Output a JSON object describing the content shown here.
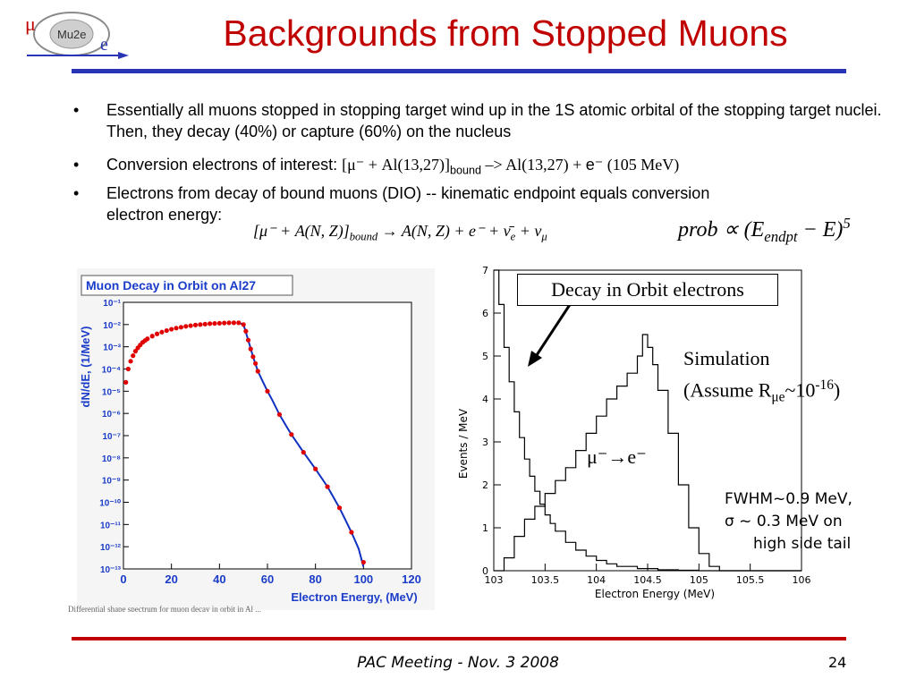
{
  "logo": {
    "text_mu": "μ",
    "text_name": "Mu2e",
    "text_e": "e"
  },
  "title": "Backgrounds from Stopped Muons",
  "bullets": {
    "b1": "Essentially all muons stopped in stopping target wind up in the 1S atomic orbital of the stopping target nuclei. Then, they decay (40%) or capture (60%) on the nucleus",
    "b2_prefix": "Conversion electrons of interest:",
    "b2_reaction_a": "[μ⁻ + Al(13,27)]",
    "b2_sub": "bound",
    "b2_arrow": " –> Al(13,27) + ",
    "b2_e": "e⁻",
    "b2_energy": " (105 MeV)",
    "b3_line1": "Electrons from decay of bound muons (DIO) -- kinematic endpoint equals conversion",
    "b3_line2": "electron energy:"
  },
  "equations": {
    "eq1_a": "[μ⁻ + A(N, Z)]",
    "eq1_sub": "bound",
    "eq1_b": " → A(N, Z) + e⁻ + ν̄",
    "eq1_sub_e": "e",
    "eq1_c": " + ν",
    "eq1_sub_mu": "μ",
    "eq2_a": "prob ∝ (E",
    "eq2_sub": "endpt",
    "eq2_b": " − E)",
    "eq2_sup": "5"
  },
  "annotations": {
    "dio": "Decay in Orbit electrons",
    "sim_line1": "Simulation",
    "sim_line2_a": "(Assume R",
    "sim_line2_sub": "μe",
    "sim_line2_b": "~10",
    "sim_line2_sup": "-16",
    "sim_line2_c": ")",
    "mue": "μ⁻→e⁻",
    "fwhm_line1": "FWHM~0.9 MeV,",
    "fwhm_line2": "σ ~ 0.3 MeV on",
    "fwhm_line3": "high side tail"
  },
  "caption_fragment": "Differential shape spectrum for muon decay in orbit in Al ...",
  "footer": {
    "text": "PAC Meeting - Nov. 3 2008",
    "page": "24"
  },
  "colors": {
    "title": "#c00000",
    "top_rule": "#2a35b5",
    "bottom_rule": "#c00000",
    "dio_points": "#e00000",
    "dio_curve": "#1030c0",
    "left_chart_title": "#1a3cc8"
  },
  "chart_data": [
    {
      "type": "scatter",
      "title": "Muon Decay in Orbit on Al27",
      "xlabel": "Electron Energy, (MeV)",
      "ylabel": "dN/dE, (1/MeV)",
      "xlim": [
        0,
        120
      ],
      "ylim_log10": [
        -13,
        -1
      ],
      "yscale": "log",
      "xticks": [
        "0",
        "20",
        "40",
        "60",
        "80",
        "100",
        "120"
      ],
      "yticks": [
        "10⁻¹",
        "10⁻²",
        "10⁻³",
        "10⁻⁴",
        "10⁻⁵",
        "10⁻⁶",
        "10⁻⁷",
        "10⁻⁸",
        "10⁻⁹",
        "10⁻¹⁰",
        "10⁻¹¹",
        "10⁻¹²",
        "10⁻¹³"
      ],
      "series": [
        {
          "x": [
            1,
            2,
            3,
            4,
            5,
            6,
            7,
            8,
            9,
            10,
            12,
            14,
            16,
            18,
            20,
            22,
            24,
            26,
            28,
            30,
            32,
            34,
            36,
            38,
            40,
            42,
            44,
            46,
            48,
            50,
            51,
            52,
            53,
            54,
            55,
            56,
            60,
            65,
            70,
            75,
            80,
            85,
            90,
            95,
            100
          ],
          "log10y": [
            -4.6,
            -4.0,
            -3.65,
            -3.4,
            -3.2,
            -3.05,
            -2.92,
            -2.8,
            -2.72,
            -2.64,
            -2.52,
            -2.42,
            -2.34,
            -2.27,
            -2.21,
            -2.16,
            -2.12,
            -2.08,
            -2.05,
            -2.02,
            -2.0,
            -1.98,
            -1.96,
            -1.95,
            -1.94,
            -1.93,
            -1.92,
            -1.92,
            -1.92,
            -2.0,
            -2.3,
            -2.7,
            -3.1,
            -3.45,
            -3.75,
            -4.1,
            -5.0,
            -6.05,
            -6.95,
            -7.75,
            -8.5,
            -9.3,
            -10.25,
            -11.35,
            -12.7
          ]
        }
      ],
      "curve": {
        "x": [
          48,
          50,
          52,
          54,
          56,
          58,
          60,
          62,
          65,
          68,
          70,
          75,
          80,
          85,
          90,
          95,
          98,
          100
        ],
        "log10y": [
          -1.92,
          -2.0,
          -2.7,
          -3.45,
          -4.1,
          -4.55,
          -5.0,
          -5.4,
          -6.05,
          -6.6,
          -6.95,
          -7.75,
          -8.5,
          -9.3,
          -10.25,
          -11.35,
          -12.1,
          -12.9
        ]
      }
    },
    {
      "type": "line",
      "title": "",
      "xlabel": "Electron Energy (MeV)",
      "ylabel": "Events / MeV",
      "xlim": [
        103,
        106
      ],
      "ylim": [
        0,
        7
      ],
      "xticks": [
        "103",
        "103.5",
        "104",
        "104.5",
        "105",
        "105.5",
        "106"
      ],
      "yticks": [
        "0",
        "1",
        "2",
        "3",
        "4",
        "5",
        "6",
        "7"
      ],
      "series": [
        {
          "x": [
            103.0,
            103.05,
            103.1,
            103.15,
            103.2,
            103.25,
            103.3,
            103.35,
            103.4,
            103.45,
            103.5,
            103.55,
            103.6,
            103.7,
            103.8,
            103.9,
            104.0,
            104.1,
            104.2,
            104.4,
            104.6,
            104.8,
            105.0,
            105.2,
            105.5,
            106.0
          ],
          "y": [
            7.0,
            6.2,
            5.2,
            4.4,
            3.7,
            3.1,
            2.6,
            2.2,
            1.85,
            1.55,
            1.3,
            1.1,
            0.92,
            0.66,
            0.48,
            0.34,
            0.24,
            0.16,
            0.1,
            0.05,
            0.02,
            0.01,
            0.0,
            0.0,
            0.0,
            0.0
          ]
        },
        {
          "x": [
            103.0,
            103.1,
            103.2,
            103.3,
            103.4,
            103.5,
            103.6,
            103.7,
            103.8,
            103.9,
            104.0,
            104.1,
            104.2,
            104.3,
            104.4,
            104.45,
            104.5,
            104.55,
            104.6,
            104.7,
            104.8,
            104.9,
            105.0,
            105.1,
            105.2,
            105.5,
            106.0
          ],
          "y": [
            0.0,
            0.3,
            0.8,
            1.2,
            1.5,
            1.8,
            2.1,
            2.4,
            2.8,
            3.2,
            3.6,
            4.0,
            4.3,
            4.6,
            5.0,
            5.5,
            5.2,
            4.8,
            4.2,
            3.2,
            2.0,
            1.0,
            0.4,
            0.1,
            0.0,
            0.0,
            0.0
          ]
        }
      ]
    }
  ]
}
